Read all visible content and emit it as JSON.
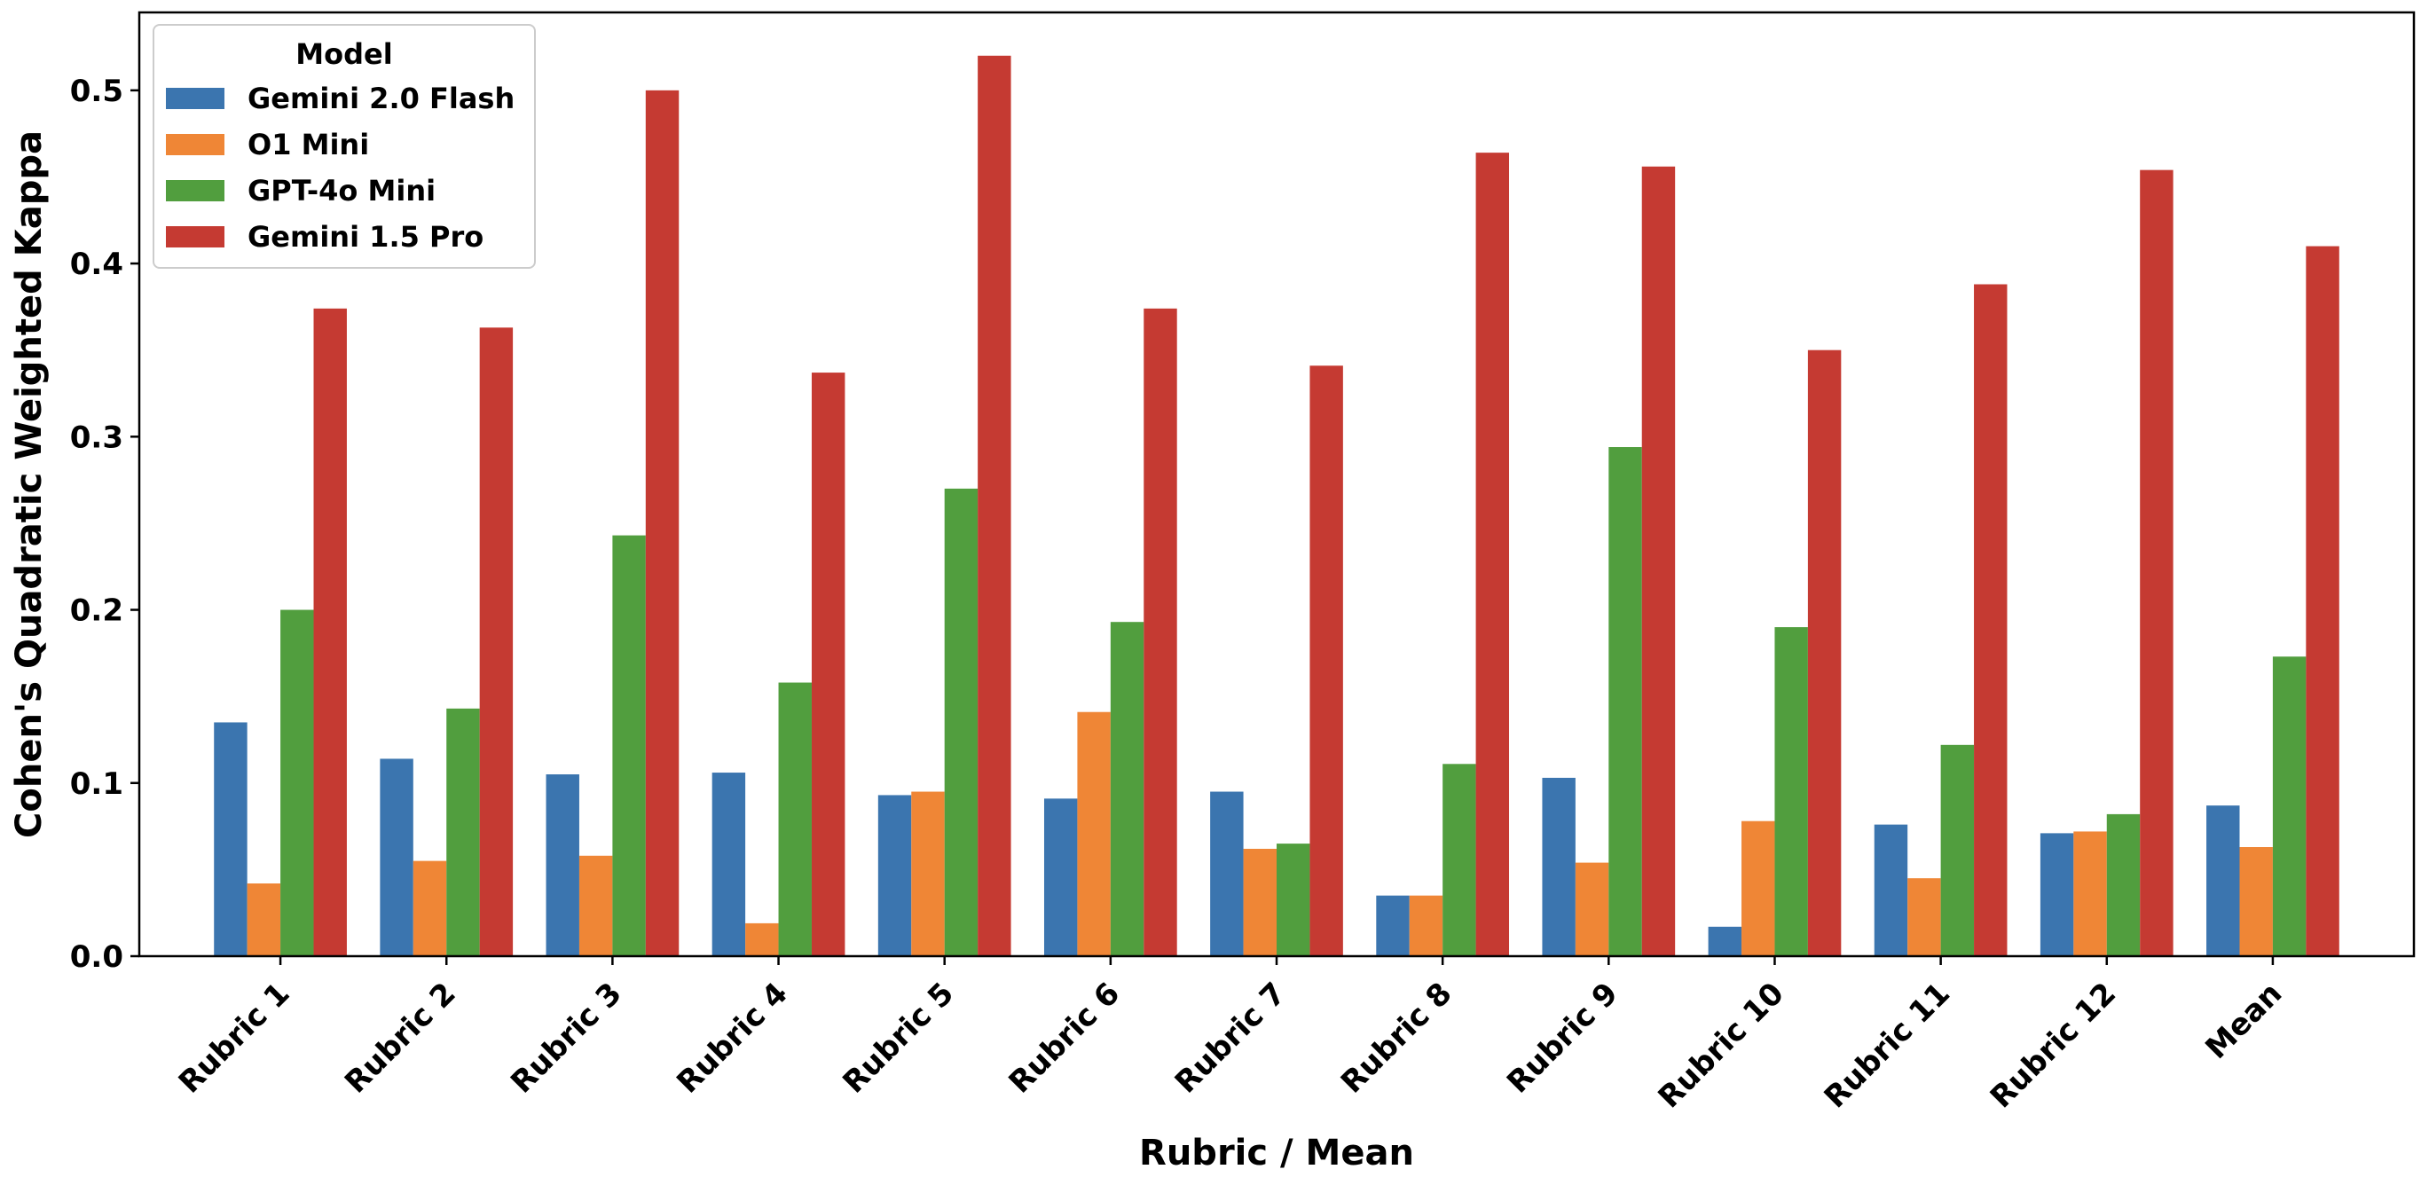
{
  "chart_data": {
    "type": "bar",
    "title": "",
    "xlabel": "Rubric / Mean",
    "ylabel": "Cohen's Quadratic Weighted Kappa",
    "categories": [
      "Rubric 1",
      "Rubric 2",
      "Rubric 3",
      "Rubric 4",
      "Rubric 5",
      "Rubric 6",
      "Rubric 7",
      "Rubric 8",
      "Rubric 9",
      "Rubric 10",
      "Rubric 11",
      "Rubric 12",
      "Mean"
    ],
    "ylim": [
      0,
      0.545
    ],
    "yticks": [
      0.0,
      0.1,
      0.2,
      0.3,
      0.4,
      0.5
    ],
    "ytick_labels": [
      "0.0",
      "0.1",
      "0.2",
      "0.3",
      "0.4",
      "0.5"
    ],
    "grid": false,
    "legend": {
      "title": "Model",
      "placement": "top-left"
    },
    "series": [
      {
        "name": "Gemini 2.0 Flash",
        "color": "#3b75af",
        "values": [
          0.135,
          0.114,
          0.105,
          0.106,
          0.093,
          0.091,
          0.095,
          0.035,
          0.103,
          0.017,
          0.076,
          0.071,
          0.087
        ]
      },
      {
        "name": "O1 Mini",
        "color": "#ef8636",
        "values": [
          0.042,
          0.055,
          0.058,
          0.019,
          0.095,
          0.141,
          0.062,
          0.035,
          0.054,
          0.078,
          0.045,
          0.072,
          0.063
        ]
      },
      {
        "name": "GPT-4o Mini",
        "color": "#519e3e",
        "values": [
          0.2,
          0.143,
          0.243,
          0.158,
          0.27,
          0.193,
          0.065,
          0.111,
          0.294,
          0.19,
          0.122,
          0.082,
          0.173
        ]
      },
      {
        "name": "Gemini 1.5 Pro",
        "color": "#c53a32",
        "values": [
          0.374,
          0.363,
          0.5,
          0.337,
          0.52,
          0.374,
          0.341,
          0.464,
          0.456,
          0.35,
          0.388,
          0.454,
          0.41
        ]
      }
    ]
  }
}
